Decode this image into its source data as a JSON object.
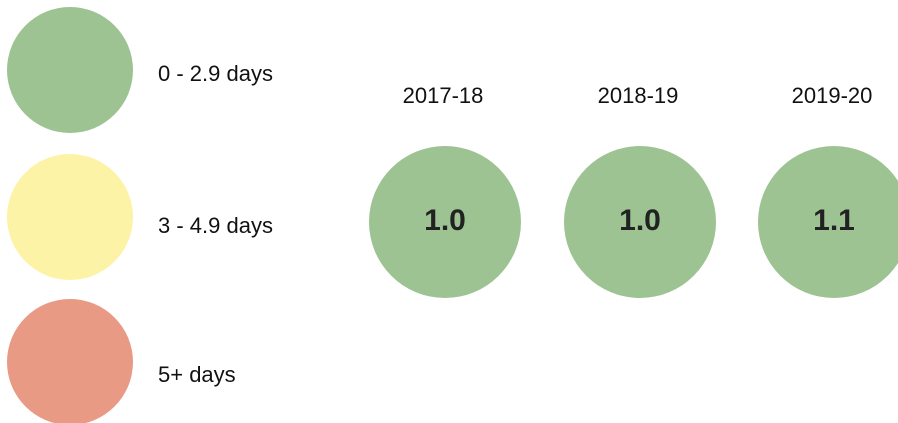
{
  "legend": [
    {
      "label": "0 - 2.9 days",
      "color": "#9dc393"
    },
    {
      "label": "3 - 4.9 days",
      "color": "#fdf3a6"
    },
    {
      "label": "5+ days",
      "color": "#e99a84"
    }
  ],
  "years": [
    {
      "label": "2017-18",
      "value": "1.0",
      "color": "#9dc393"
    },
    {
      "label": "2018-19",
      "value": "1.0",
      "color": "#9dc393"
    },
    {
      "label": "2019-20",
      "value": "1.1",
      "color": "#9dc393"
    }
  ]
}
